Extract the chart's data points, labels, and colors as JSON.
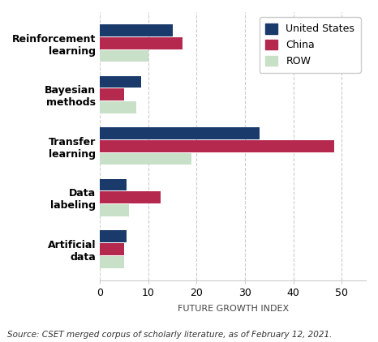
{
  "categories": [
    "Reinforcement\nlearning",
    "Bayesian\nmethods",
    "Transfer\nlearning",
    "Data\nlabeling",
    "Artificial\ndata"
  ],
  "series": {
    "United States": [
      15,
      8.5,
      33,
      5.5,
      5.5
    ],
    "China": [
      17,
      5,
      48.5,
      12.5,
      5
    ],
    "ROW": [
      10,
      7.5,
      19,
      6,
      5
    ]
  },
  "colors": {
    "United States": "#1a3a6b",
    "China": "#b5294e",
    "ROW": "#c8e0c8"
  },
  "xlabel": "FUTURE GROWTH INDEX",
  "xlim": [
    0,
    55
  ],
  "xticks": [
    0,
    10,
    20,
    30,
    40,
    50
  ],
  "source_text": "Source: CSET merged corpus of scholarly literature, as of February 12, 2021.",
  "legend_labels": [
    "United States",
    "China",
    "ROW"
  ],
  "bar_height": 0.25,
  "background_color": "#ffffff",
  "grid_color": "#cccccc"
}
